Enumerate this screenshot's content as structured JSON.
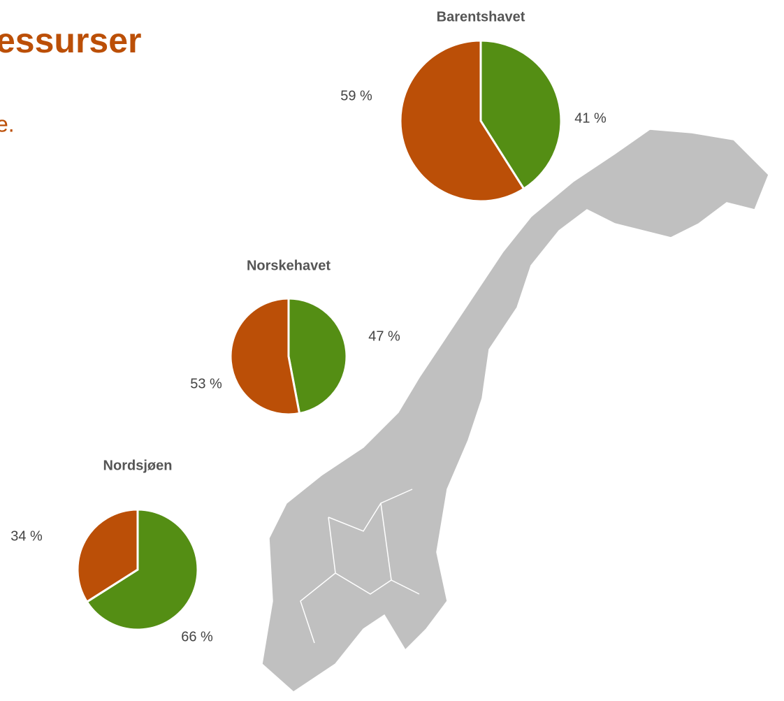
{
  "header": {
    "title": "essurser",
    "subtitle": "e."
  },
  "chart_data": [
    {
      "type": "pie",
      "title": "Barentshavet",
      "values": [
        41,
        59
      ],
      "value_labels": [
        "41 %",
        "59 %"
      ],
      "colors": [
        "#548e14",
        "#bb4f07"
      ]
    },
    {
      "type": "pie",
      "title": "Norskehavet",
      "values": [
        47,
        53
      ],
      "value_labels": [
        "47 %",
        "53 %"
      ],
      "colors": [
        "#548e14",
        "#bb4f07"
      ]
    },
    {
      "type": "pie",
      "title": "Nordsjøen",
      "values": [
        66,
        34
      ],
      "value_labels": [
        "66 %",
        "34 %"
      ],
      "colors": [
        "#548e14",
        "#bb4f07"
      ]
    }
  ]
}
